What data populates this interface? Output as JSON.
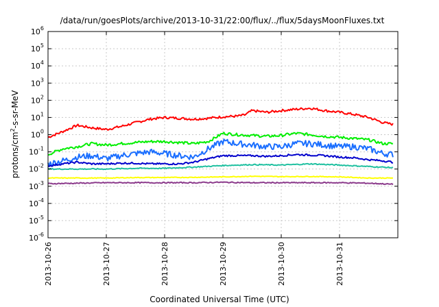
{
  "chart_data": {
    "type": "line",
    "title": "/data/run/goesPlots/archive/2013-10-31/22:00/flux/../flux/5daysMoonFluxes.txt",
    "xlabel": "Coordinated Universal Time (UTC)",
    "ylabel": "protons/cm²-s-sr-MeV",
    "yscale": "log",
    "ylim": [
      1e-06,
      1000000.0
    ],
    "xlim": [
      "2013-10-26",
      "2013-11-01"
    ],
    "x_ticks": [
      "2013-10-26",
      "2013-10-27",
      "2013-10-28",
      "2013-10-29",
      "2013-10-30",
      "2013-10-31"
    ],
    "y_ticks": [
      {
        "value": 1e-06,
        "base": "10",
        "exp": "-6"
      },
      {
        "value": 1e-05,
        "base": "10",
        "exp": "-5"
      },
      {
        "value": 0.0001,
        "base": "10",
        "exp": "-4"
      },
      {
        "value": 0.001,
        "base": "10",
        "exp": "-3"
      },
      {
        "value": 0.01,
        "base": "10",
        "exp": "-2"
      },
      {
        "value": 0.1,
        "base": "10",
        "exp": "-1"
      },
      {
        "value": 1.0,
        "base": "10",
        "exp": "0"
      },
      {
        "value": 10.0,
        "base": "10",
        "exp": "1"
      },
      {
        "value": 100.0,
        "base": "10",
        "exp": "2"
      },
      {
        "value": 1000.0,
        "base": "10",
        "exp": "3"
      },
      {
        "value": 10000.0,
        "base": "10",
        "exp": "4"
      },
      {
        "value": 100000.0,
        "base": "10",
        "exp": "5"
      },
      {
        "value": 1000000.0,
        "base": "10",
        "exp": "6"
      }
    ],
    "grid": true,
    "series": [
      {
        "color": "#ff0000",
        "x": [
          "2013-10-26 00:00",
          "2013-10-26 06:00",
          "2013-10-26 12:00",
          "2013-10-26 18:00",
          "2013-10-27 00:00",
          "2013-10-27 06:00",
          "2013-10-27 12:00",
          "2013-10-27 18:00",
          "2013-10-28 00:00",
          "2013-10-28 06:00",
          "2013-10-28 12:00",
          "2013-10-28 18:00",
          "2013-10-29 00:00",
          "2013-10-29 06:00",
          "2013-10-29 09:00",
          "2013-10-29 12:00",
          "2013-10-29 18:00",
          "2013-10-30 00:00",
          "2013-10-30 06:00",
          "2013-10-30 12:00",
          "2013-10-30 18:00",
          "2013-10-31 00:00",
          "2013-10-31 06:00",
          "2013-10-31 12:00",
          "2013-10-31 18:00",
          "2013-10-31 22:00"
        ],
        "y": [
          0.7,
          1.5,
          3.5,
          2.5,
          2.0,
          3.0,
          5.0,
          8.0,
          10,
          9,
          8,
          9,
          11,
          12,
          14,
          25,
          20,
          25,
          30,
          35,
          25,
          20,
          15,
          10,
          5,
          4
        ]
      },
      {
        "color": "#00ee00",
        "x": [
          "2013-10-26 00:00",
          "2013-10-26 06:00",
          "2013-10-26 12:00",
          "2013-10-26 18:00",
          "2013-10-27 00:00",
          "2013-10-27 06:00",
          "2013-10-27 12:00",
          "2013-10-27 18:00",
          "2013-10-28 00:00",
          "2013-10-28 06:00",
          "2013-10-28 12:00",
          "2013-10-28 18:00",
          "2013-10-29 00:00",
          "2013-10-29 06:00",
          "2013-10-29 12:00",
          "2013-10-29 18:00",
          "2013-10-30 00:00",
          "2013-10-30 06:00",
          "2013-10-30 12:00",
          "2013-10-30 18:00",
          "2013-10-31 00:00",
          "2013-10-31 06:00",
          "2013-10-31 12:00",
          "2013-10-31 18:00",
          "2013-10-31 22:00"
        ],
        "y": [
          0.07,
          0.15,
          0.2,
          0.3,
          0.25,
          0.3,
          0.35,
          0.4,
          0.4,
          0.35,
          0.3,
          0.4,
          1.2,
          1.0,
          0.9,
          0.8,
          0.9,
          1.2,
          1.0,
          0.8,
          0.7,
          0.6,
          0.5,
          0.3,
          0.3
        ]
      },
      {
        "color": "#1a6eff",
        "x": [
          "2013-10-26 00:00",
          "2013-10-26 06:00",
          "2013-10-26 12:00",
          "2013-10-26 18:00",
          "2013-10-27 00:00",
          "2013-10-27 06:00",
          "2013-10-27 12:00",
          "2013-10-27 18:00",
          "2013-10-28 00:00",
          "2013-10-28 06:00",
          "2013-10-28 12:00",
          "2013-10-28 18:00",
          "2013-10-29 00:00",
          "2013-10-29 06:00",
          "2013-10-29 12:00",
          "2013-10-29 18:00",
          "2013-10-30 00:00",
          "2013-10-30 06:00",
          "2013-10-30 12:00",
          "2013-10-30 18:00",
          "2013-10-31 00:00",
          "2013-10-31 06:00",
          "2013-10-31 12:00",
          "2013-10-31 18:00",
          "2013-10-31 22:00"
        ],
        "y": [
          0.02,
          0.03,
          0.05,
          0.06,
          0.04,
          0.06,
          0.08,
          0.1,
          0.08,
          0.06,
          0.05,
          0.15,
          0.4,
          0.3,
          0.25,
          0.2,
          0.2,
          0.3,
          0.3,
          0.25,
          0.2,
          0.2,
          0.15,
          0.08,
          0.07
        ]
      },
      {
        "color": "#0000cc",
        "x": [
          "2013-10-26 00:00",
          "2013-10-26 06:00",
          "2013-10-26 12:00",
          "2013-10-26 18:00",
          "2013-10-27 00:00",
          "2013-10-27 06:00",
          "2013-10-27 12:00",
          "2013-10-27 18:00",
          "2013-10-28 00:00",
          "2013-10-28 06:00",
          "2013-10-28 12:00",
          "2013-10-28 18:00",
          "2013-10-29 00:00",
          "2013-10-29 06:00",
          "2013-10-29 12:00",
          "2013-10-29 18:00",
          "2013-10-30 00:00",
          "2013-10-30 06:00",
          "2013-10-30 12:00",
          "2013-10-30 18:00",
          "2013-10-31 00:00",
          "2013-10-31 06:00",
          "2013-10-31 12:00",
          "2013-10-31 18:00",
          "2013-10-31 22:00"
        ],
        "y": [
          0.015,
          0.02,
          0.025,
          0.02,
          0.02,
          0.022,
          0.022,
          0.02,
          0.02,
          0.02,
          0.025,
          0.04,
          0.06,
          0.06,
          0.06,
          0.055,
          0.06,
          0.07,
          0.065,
          0.06,
          0.05,
          0.045,
          0.035,
          0.03,
          0.025
        ]
      },
      {
        "color": "#1fc0a0",
        "x": [
          "2013-10-26 00:00",
          "2013-10-26 12:00",
          "2013-10-27 00:00",
          "2013-10-27 12:00",
          "2013-10-28 00:00",
          "2013-10-28 12:00",
          "2013-10-29 00:00",
          "2013-10-29 12:00",
          "2013-10-30 00:00",
          "2013-10-30 12:00",
          "2013-10-31 00:00",
          "2013-10-31 12:00",
          "2013-10-31 22:00"
        ],
        "y": [
          0.01,
          0.01,
          0.01,
          0.011,
          0.011,
          0.013,
          0.016,
          0.018,
          0.017,
          0.02,
          0.017,
          0.014,
          0.012
        ]
      },
      {
        "color": "#ffff00",
        "x": [
          "2013-10-26 00:00",
          "2013-10-26 12:00",
          "2013-10-27 00:00",
          "2013-10-27 12:00",
          "2013-10-28 00:00",
          "2013-10-28 12:00",
          "2013-10-29 00:00",
          "2013-10-29 12:00",
          "2013-10-30 00:00",
          "2013-10-30 12:00",
          "2013-10-31 00:00",
          "2013-10-31 12:00",
          "2013-10-31 22:00"
        ],
        "y": [
          0.003,
          0.003,
          0.003,
          0.0032,
          0.0032,
          0.0033,
          0.0035,
          0.0038,
          0.0036,
          0.0037,
          0.0035,
          0.003,
          0.003
        ]
      },
      {
        "color": "#8b3a8b",
        "x": [
          "2013-10-26 00:00",
          "2013-10-26 12:00",
          "2013-10-27 00:00",
          "2013-10-27 12:00",
          "2013-10-28 00:00",
          "2013-10-28 12:00",
          "2013-10-29 00:00",
          "2013-10-29 12:00",
          "2013-10-30 00:00",
          "2013-10-30 12:00",
          "2013-10-31 00:00",
          "2013-10-31 12:00",
          "2013-10-31 22:00"
        ],
        "y": [
          0.0014,
          0.0015,
          0.0016,
          0.0016,
          0.0016,
          0.0016,
          0.0017,
          0.0016,
          0.0016,
          0.0016,
          0.0016,
          0.0015,
          0.0013
        ]
      }
    ]
  }
}
